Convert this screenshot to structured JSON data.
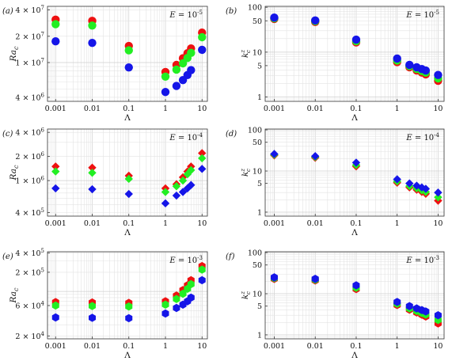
{
  "colors": {
    "red": "#ee1111",
    "green": "#22ee22",
    "blue": "#1515e8"
  },
  "chart_data": [
    {
      "id": "a",
      "type": "scatter",
      "marker": "circle",
      "panel_label": "(a)",
      "ekman_label": "E = 10^{-5}",
      "xlabel": "Λ",
      "ylabel": "Ra_c",
      "xscale": "log",
      "yscale": "log",
      "xlim": [
        0.0006,
        14
      ],
      "ylim": [
        3600000,
        44000000
      ],
      "xticks": [
        {
          "v": 0.001,
          "t": "0.001"
        },
        {
          "v": 0.01,
          "t": "0.01"
        },
        {
          "v": 0.1,
          "t": "0.1"
        },
        {
          "v": 1,
          "t": "1"
        },
        {
          "v": 10,
          "t": "10"
        }
      ],
      "yticks": [
        {
          "v": 4000000,
          "b": "4 × 10",
          "e": "6"
        },
        {
          "v": 10000000,
          "b": "1 × 10",
          "e": "7"
        },
        {
          "v": 20000000,
          "b": "2 × 10",
          "e": "7"
        },
        {
          "v": 40000000,
          "b": "4 × 10",
          "e": "7"
        }
      ],
      "x": [
        0.001,
        0.01,
        0.1,
        1,
        2,
        3,
        4,
        5,
        10
      ],
      "series": [
        {
          "color": "red",
          "values": [
            31000000,
            30000000,
            15500000,
            7800000,
            9400000,
            11200000,
            12800000,
            14500000,
            22000000
          ]
        },
        {
          "color": "green",
          "values": [
            27500000,
            26500000,
            13800000,
            6900000,
            8300000,
            9800000,
            11300000,
            12900000,
            19500000
          ]
        },
        {
          "color": "blue",
          "values": [
            17500000,
            16800000,
            8800000,
            4600000,
            5400000,
            6300000,
            7200000,
            8200000,
            14000000
          ]
        }
      ]
    },
    {
      "id": "b",
      "type": "scatter",
      "marker": "circle",
      "panel_label": "(b)",
      "ekman_label": "E = 10^{-5}",
      "xlabel": "Λ",
      "ylabel": "k_c^z",
      "xscale": "log",
      "yscale": "log",
      "xlim": [
        0.0006,
        14
      ],
      "ylim": [
        0.8,
        105
      ],
      "xticks": [
        {
          "v": 0.001,
          "t": "0.001"
        },
        {
          "v": 0.01,
          "t": "0.01"
        },
        {
          "v": 0.1,
          "t": "0.1"
        },
        {
          "v": 1,
          "t": "1"
        },
        {
          "v": 10,
          "t": "10"
        }
      ],
      "yticks": [
        {
          "v": 1,
          "t": "1"
        },
        {
          "v": 5,
          "t": "5"
        },
        {
          "v": 10,
          "t": "10"
        },
        {
          "v": 50,
          "t": "50"
        },
        {
          "v": 100,
          "t": "100"
        }
      ],
      "x": [
        0.001,
        0.01,
        0.1,
        1,
        2,
        3,
        4,
        5,
        10
      ],
      "series": [
        {
          "color": "red",
          "values": [
            55,
            47,
            16.5,
            6.0,
            4.6,
            3.9,
            3.5,
            3.2,
            2.3
          ]
        },
        {
          "color": "green",
          "values": [
            57,
            49,
            17.5,
            6.5,
            4.9,
            4.2,
            3.8,
            3.5,
            2.6
          ]
        },
        {
          "color": "blue",
          "values": [
            59,
            51,
            19,
            7.2,
            5.2,
            4.6,
            4.2,
            3.9,
            3.1
          ]
        }
      ]
    },
    {
      "id": "c",
      "type": "scatter",
      "marker": "diamond",
      "panel_label": "(c)",
      "ekman_label": "E = 10^{-4}",
      "xlabel": "Λ",
      "ylabel": "Ra_c",
      "xscale": "log",
      "yscale": "log",
      "xlim": [
        0.0006,
        14
      ],
      "ylim": [
        360000,
        4400000
      ],
      "xticks": [
        {
          "v": 0.001,
          "t": "0.001"
        },
        {
          "v": 0.01,
          "t": "0.01"
        },
        {
          "v": 0.1,
          "t": "0.1"
        },
        {
          "v": 1,
          "t": "1"
        },
        {
          "v": 10,
          "t": "10"
        }
      ],
      "yticks": [
        {
          "v": 400000,
          "b": "4 × 10",
          "e": "5"
        },
        {
          "v": 1000000,
          "b": "1 × 10",
          "e": "6"
        },
        {
          "v": 2000000,
          "b": "2 × 10",
          "e": "6"
        },
        {
          "v": 4000000,
          "b": "4 × 10",
          "e": "6"
        }
      ],
      "x": [
        0.001,
        0.01,
        0.1,
        1,
        2,
        3,
        4,
        5,
        10
      ],
      "series": [
        {
          "color": "red",
          "values": [
            1500000,
            1450000,
            1150000,
            800000,
            900000,
            1100000,
            1300000,
            1500000,
            2200000
          ]
        },
        {
          "color": "green",
          "values": [
            1300000,
            1250000,
            1050000,
            720000,
            850000,
            1000000,
            1200000,
            1350000,
            1900000
          ]
        },
        {
          "color": "blue",
          "values": [
            800000,
            780000,
            680000,
            520000,
            650000,
            720000,
            800000,
            880000,
            1400000
          ]
        }
      ]
    },
    {
      "id": "d",
      "type": "scatter",
      "marker": "diamond",
      "panel_label": "(d)",
      "ekman_label": "E = 10^{-4}",
      "xlabel": "Λ",
      "ylabel": "k_c^z",
      "xscale": "log",
      "yscale": "log",
      "xlim": [
        0.0006,
        14
      ],
      "ylim": [
        0.8,
        105
      ],
      "xticks": [
        {
          "v": 0.001,
          "t": "0.001"
        },
        {
          "v": 0.01,
          "t": "0.01"
        },
        {
          "v": 0.1,
          "t": "0.1"
        },
        {
          "v": 1,
          "t": "1"
        },
        {
          "v": 10,
          "t": "10"
        }
      ],
      "yticks": [
        {
          "v": 1,
          "t": "1"
        },
        {
          "v": 5,
          "t": "5"
        },
        {
          "v": 10,
          "t": "10"
        },
        {
          "v": 50,
          "t": "50"
        },
        {
          "v": 100,
          "t": "100"
        }
      ],
      "x": [
        0.001,
        0.01,
        0.1,
        1,
        2,
        3,
        4,
        5,
        10
      ],
      "series": [
        {
          "color": "red",
          "values": [
            24,
            21,
            13,
            5.2,
            4.0,
            3.5,
            3.1,
            2.8,
            1.9
          ]
        },
        {
          "color": "green",
          "values": [
            25,
            22,
            14,
            5.6,
            4.3,
            3.8,
            3.4,
            3.1,
            2.3
          ]
        },
        {
          "color": "blue",
          "values": [
            26,
            23,
            16,
            6.3,
            5.0,
            4.4,
            4.0,
            3.7,
            3.0
          ]
        }
      ]
    },
    {
      "id": "e",
      "type": "scatter",
      "marker": "hexagon",
      "panel_label": "(e)",
      "ekman_label": "E = 10^{-3}",
      "xlabel": "Λ",
      "ylabel": "Ra_c",
      "xscale": "log",
      "yscale": "log",
      "xlim": [
        0.0006,
        14
      ],
      "ylim": [
        18000,
        420000
      ],
      "xticks": [
        {
          "v": 0.001,
          "t": "0.001"
        },
        {
          "v": 0.01,
          "t": "0.01"
        },
        {
          "v": 0.1,
          "t": "0.1"
        },
        {
          "v": 1,
          "t": "1"
        },
        {
          "v": 10,
          "t": "10"
        }
      ],
      "yticks": [
        {
          "v": 20000,
          "b": "2 × 10",
          "e": "4"
        },
        {
          "v": 60000,
          "b": "6 × 10",
          "e": "4"
        },
        {
          "v": 200000,
          "b": "2 × 10",
          "e": "5"
        },
        {
          "v": 400000,
          "b": "4 × 10",
          "e": "5"
        }
      ],
      "x": [
        0.001,
        0.01,
        0.1,
        1,
        2,
        3,
        4,
        5,
        10
      ],
      "series": [
        {
          "color": "red",
          "values": [
            68000,
            67000,
            66000,
            70000,
            86000,
            105000,
            125000,
            150000,
            250000
          ]
        },
        {
          "color": "green",
          "values": [
            60000,
            59000,
            58000,
            62000,
            76000,
            92000,
            110000,
            130000,
            220000
          ]
        },
        {
          "color": "blue",
          "values": [
            39000,
            38500,
            38000,
            45000,
            55000,
            62000,
            70000,
            80000,
            150000
          ]
        }
      ]
    },
    {
      "id": "f",
      "type": "scatter",
      "marker": "hexagon",
      "panel_label": "(f)",
      "ekman_label": "E = 10^{-3}",
      "xlabel": "Λ",
      "ylabel": "k_c^z",
      "xscale": "log",
      "yscale": "log",
      "xlim": [
        0.0006,
        14
      ],
      "ylim": [
        0.8,
        105
      ],
      "xticks": [
        {
          "v": 0.001,
          "t": "0.001"
        },
        {
          "v": 0.01,
          "t": "0.01"
        },
        {
          "v": 0.1,
          "t": "0.1"
        },
        {
          "v": 1,
          "t": "1"
        },
        {
          "v": 10,
          "t": "10"
        }
      ],
      "yticks": [
        {
          "v": 1,
          "t": "1"
        },
        {
          "v": 5,
          "t": "5"
        },
        {
          "v": 10,
          "t": "10"
        },
        {
          "v": 50,
          "t": "50"
        },
        {
          "v": 100,
          "t": "100"
        }
      ],
      "x": [
        0.001,
        0.01,
        0.1,
        1,
        2,
        3,
        4,
        5,
        10
      ],
      "series": [
        {
          "color": "red",
          "values": [
            23,
            21,
            13,
            5.3,
            4.1,
            3.5,
            3.1,
            2.8,
            1.9
          ]
        },
        {
          "color": "green",
          "values": [
            24,
            22,
            14,
            5.7,
            4.4,
            3.8,
            3.4,
            3.1,
            2.3
          ]
        },
        {
          "color": "blue",
          "values": [
            25,
            23,
            16,
            6.3,
            5.0,
            4.4,
            4.0,
            3.7,
            3.0
          ]
        }
      ]
    }
  ]
}
